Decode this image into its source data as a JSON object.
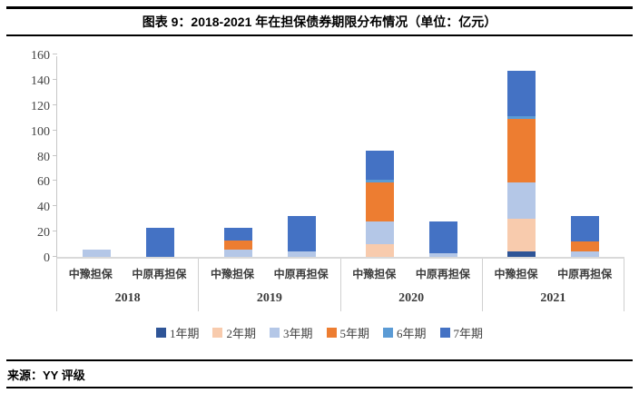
{
  "header": {
    "title": "图表 9：2018-2021 年在担保债券期限分布情况（单位：亿元）"
  },
  "source": {
    "label": "来源：YY 评级"
  },
  "chart_data": {
    "type": "bar",
    "stacked": true,
    "title": "2018-2021 年在担保债券期限分布情况",
    "unit": "亿元",
    "xlabel": "",
    "ylabel": "",
    "ylim": [
      0,
      160
    ],
    "yticks": [
      0,
      20,
      40,
      60,
      80,
      100,
      120,
      140,
      160
    ],
    "grid": false,
    "legend_position": "bottom",
    "group_labels": [
      "2018",
      "2019",
      "2020",
      "2021"
    ],
    "categories": [
      "中豫担保",
      "中原再担保",
      "中豫担保",
      "中原再担保",
      "中豫担保",
      "中原再担保",
      "中豫担保",
      "中原再担保"
    ],
    "series": [
      {
        "name": "1年期",
        "color": "#2F5597",
        "values": [
          0,
          0,
          0,
          0,
          0,
          0,
          4,
          0
        ]
      },
      {
        "name": "2年期",
        "color": "#F8CBAD",
        "values": [
          0,
          0,
          0,
          0,
          10,
          0,
          26,
          0
        ]
      },
      {
        "name": "3年期",
        "color": "#B4C7E7",
        "values": [
          6,
          0,
          6,
          4,
          18,
          3,
          29,
          4
        ]
      },
      {
        "name": "5年期",
        "color": "#ED7D31",
        "values": [
          0,
          0,
          7,
          0,
          31,
          0,
          50,
          8
        ]
      },
      {
        "name": "6年期",
        "color": "#5B9BD5",
        "values": [
          0,
          0,
          0,
          0,
          2,
          0,
          2,
          0
        ]
      },
      {
        "name": "7年期",
        "color": "#4472C4",
        "values": [
          0,
          23,
          10,
          28,
          23,
          25,
          36,
          20
        ]
      }
    ],
    "totals": [
      6,
      23,
      23,
      32,
      84,
      28,
      147,
      32
    ],
    "axis_color": "#c6c6c6",
    "baseline_color": "#d9d9d9"
  }
}
